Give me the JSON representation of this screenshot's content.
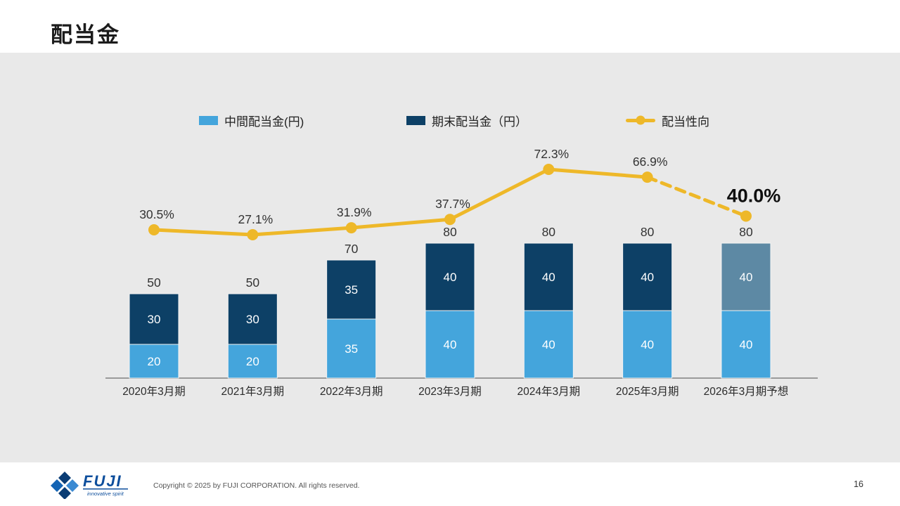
{
  "slide": {
    "title": "配当金",
    "page_number": "16",
    "footer": {
      "brand": "FUJI",
      "tagline": "innovative spirit",
      "copyright": "Copyright © 2025 by FUJI CORPORATION. All rights reserved."
    }
  },
  "legend": [
    {
      "label": "中間配当金(円)"
    },
    {
      "label": "期末配当金（円）"
    },
    {
      "label": "配当性向"
    }
  ],
  "chart_data": {
    "type": "bar+line combo (stacked bars with payout-ratio line)",
    "categories": [
      "2020年3月期",
      "2021年3月期",
      "2022年3月期",
      "2023年3月期",
      "2024年3月期",
      "2025年3月期",
      "2026年3月期予想"
    ],
    "series": [
      {
        "name": "中間配当金(円)",
        "type": "bar",
        "values": [
          20,
          20,
          35,
          40,
          40,
          40,
          40
        ]
      },
      {
        "name": "期末配当金（円）",
        "type": "bar",
        "values": [
          30,
          30,
          35,
          40,
          40,
          40,
          40
        ]
      },
      {
        "name": "配当性向",
        "type": "line",
        "unit": "%",
        "values": [
          30.5,
          27.1,
          31.9,
          37.7,
          72.3,
          66.9,
          40.0
        ]
      }
    ],
    "totals": [
      50,
      50,
      70,
      80,
      80,
      80,
      80
    ],
    "ratio_labels": [
      "30.5%",
      "27.1%",
      "31.9%",
      "37.7%",
      "72.3%",
      "66.9%",
      "40.0%"
    ],
    "forecast_index": 6,
    "notes": "Last period is a forecast: year-end bar segment muted色, payout-ratio line segment dashed, 40.0% label emphasized bold.",
    "ylabel": "",
    "xlabel": "",
    "grid": false,
    "legend_position": "top",
    "colors": {
      "interim": "#44a5dc",
      "yearend": "#0d4066",
      "yearend_forecast": "#5d89a4",
      "line": "#eeb829",
      "bar_value_text": "#ffffff",
      "total_text": "#333333",
      "ratio_text": "#333333",
      "forecast_ratio_text": "#0f0f0f",
      "axis": "#9a9a9a",
      "background": "#e9e9e9"
    }
  }
}
